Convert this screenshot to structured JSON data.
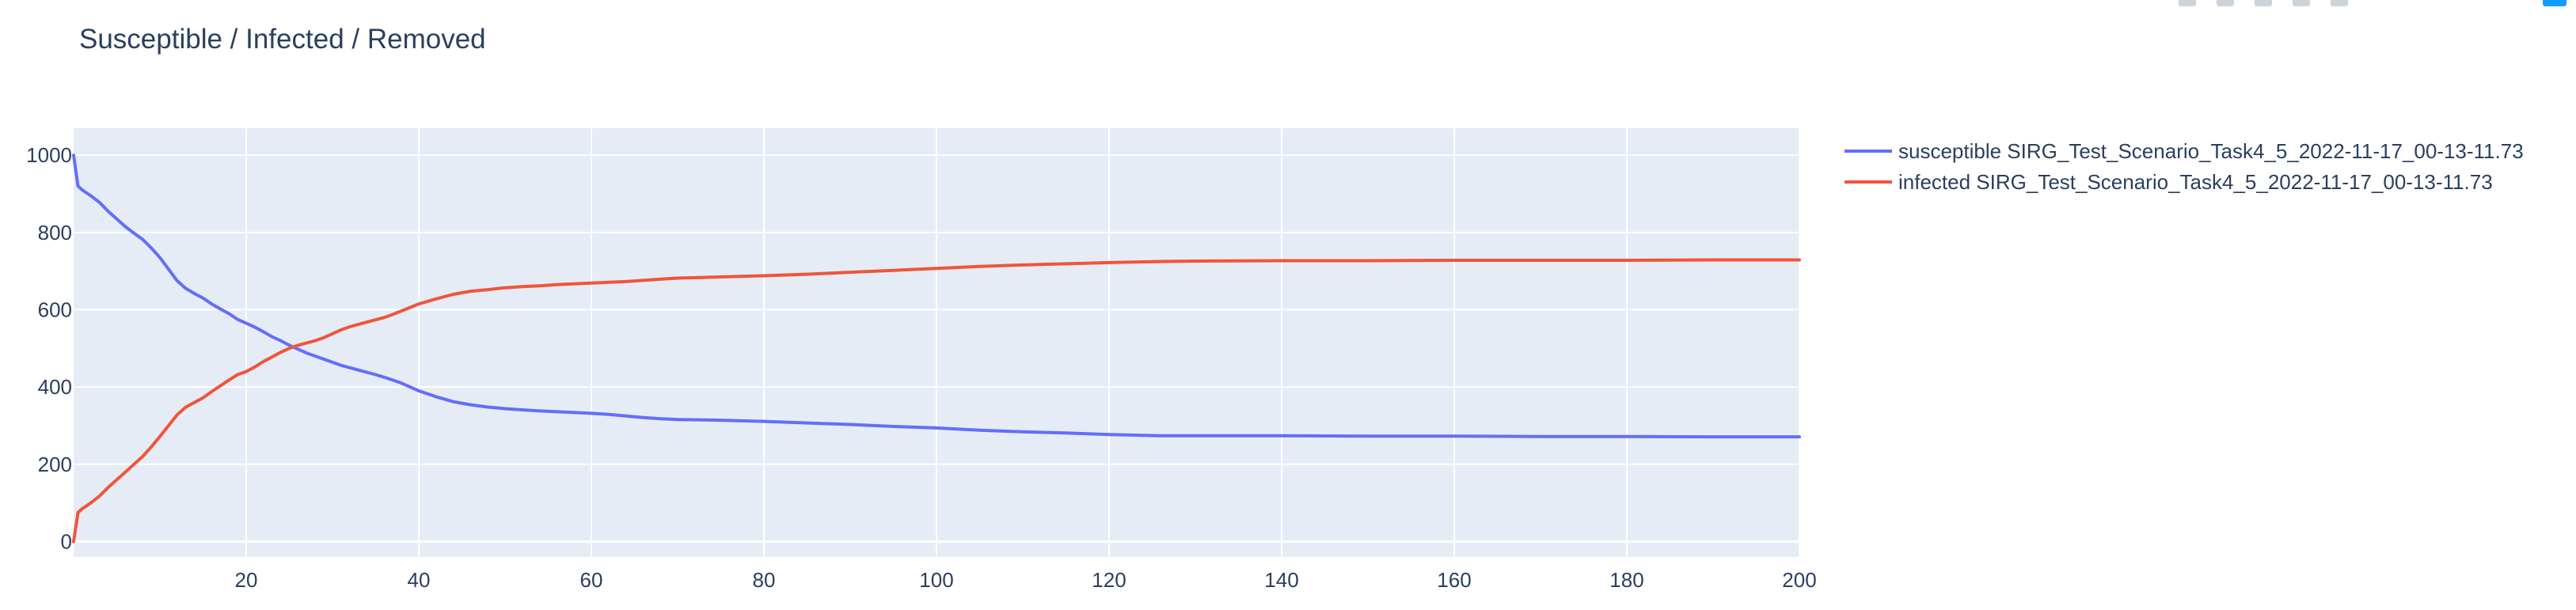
{
  "chart_data": {
    "type": "line",
    "title": "Susceptible / Infected / Removed",
    "xlim": [
      0,
      200
    ],
    "ylim": [
      -40,
      1070
    ],
    "x_ticks": [
      20,
      40,
      60,
      80,
      100,
      120,
      140,
      160,
      180,
      200
    ],
    "y_ticks": [
      0,
      200,
      400,
      600,
      800,
      1000
    ],
    "grid": true,
    "legend_position": "right",
    "plot_background": "#e5ecf6",
    "series": [
      {
        "name": "susceptible SIRG_Test_Scenario_Task4_5_2022-11-17_00-13-11.73",
        "color": "#636efa",
        "x": [
          0,
          0.5,
          1,
          2,
          3,
          4,
          5,
          6,
          7,
          8,
          9,
          10,
          11,
          12,
          13,
          14,
          15,
          16,
          17,
          18,
          19,
          20,
          21,
          22,
          23,
          24,
          25,
          26,
          27,
          28,
          29,
          30,
          31,
          32,
          33,
          34,
          35,
          36,
          37,
          38,
          39,
          40,
          42,
          44,
          46,
          48,
          50,
          52,
          54,
          56,
          58,
          60,
          62,
          64,
          66,
          68,
          70,
          75,
          80,
          85,
          90,
          95,
          100,
          105,
          110,
          115,
          120,
          126,
          130,
          140,
          150,
          160,
          170,
          180,
          190,
          200
        ],
        "y": [
          1000,
          920,
          910,
          895,
          878,
          855,
          835,
          815,
          798,
          782,
          760,
          735,
          705,
          675,
          655,
          642,
          630,
          615,
          602,
          590,
          575,
          565,
          555,
          543,
          530,
          520,
          508,
          498,
          488,
          480,
          472,
          464,
          456,
          450,
          444,
          438,
          432,
          425,
          418,
          410,
          400,
          390,
          375,
          362,
          354,
          348,
          344,
          341,
          338,
          336,
          334,
          332,
          329,
          325,
          321,
          318,
          316,
          314,
          311,
          307,
          303,
          298,
          294,
          288,
          284,
          281,
          277,
          274,
          274,
          274,
          273,
          273,
          272,
          272,
          271,
          271
        ]
      },
      {
        "name": "infected SIRG_Test_Scenario_Task4_5_2022-11-17_00-13-11.73",
        "color": "#ef553b",
        "x": [
          0,
          0.5,
          1,
          2,
          3,
          4,
          5,
          6,
          7,
          8,
          9,
          10,
          11,
          12,
          13,
          14,
          15,
          16,
          17,
          18,
          19,
          20,
          21,
          22,
          23,
          24,
          25,
          26,
          27,
          28,
          29,
          30,
          31,
          32,
          33,
          34,
          35,
          36,
          37,
          38,
          39,
          40,
          42,
          44,
          46,
          48,
          50,
          52,
          54,
          56,
          58,
          60,
          62,
          64,
          66,
          68,
          70,
          75,
          80,
          85,
          90,
          95,
          100,
          105,
          110,
          115,
          120,
          126,
          130,
          140,
          150,
          160,
          170,
          180,
          190,
          200
        ],
        "y": [
          0,
          75,
          85,
          100,
          118,
          140,
          160,
          180,
          200,
          220,
          245,
          272,
          300,
          328,
          348,
          360,
          372,
          388,
          403,
          418,
          432,
          440,
          452,
          466,
          478,
          490,
          500,
          508,
          514,
          520,
          528,
          538,
          548,
          556,
          562,
          568,
          574,
          580,
          588,
          597,
          606,
          615,
          628,
          640,
          648,
          652,
          657,
          660,
          662,
          665,
          667,
          669,
          671,
          673,
          676,
          679,
          682,
          685,
          688,
          692,
          697,
          702,
          707,
          712,
          716,
          719,
          722,
          725,
          726,
          727,
          727,
          728,
          728,
          728,
          729,
          729
        ]
      }
    ]
  }
}
